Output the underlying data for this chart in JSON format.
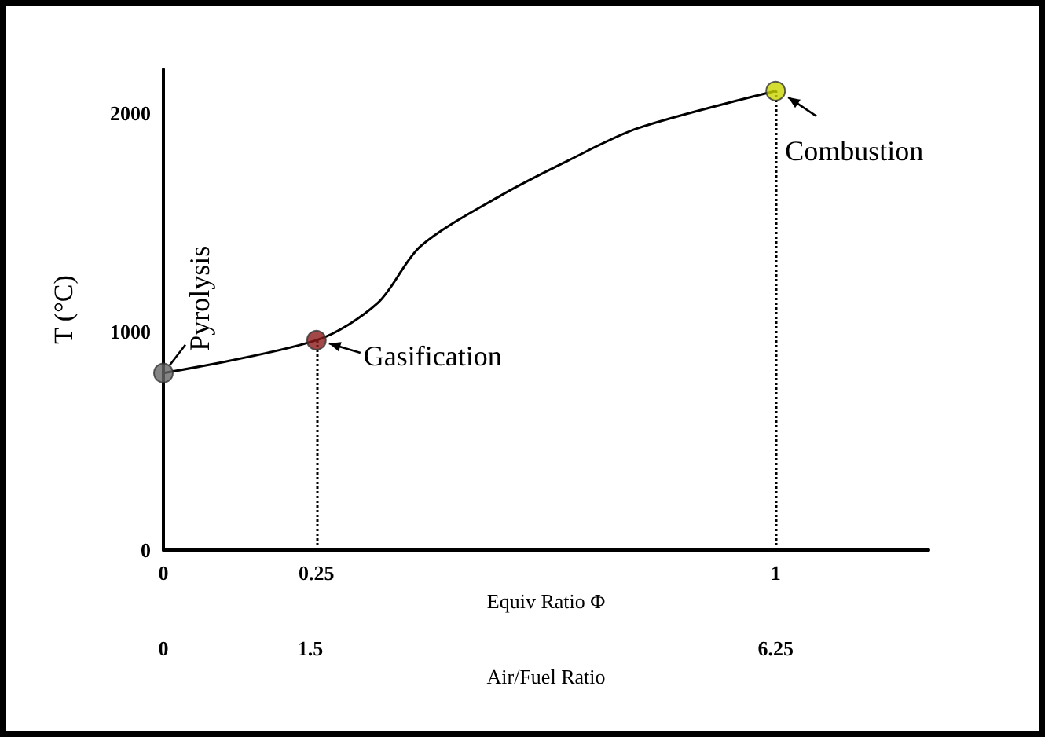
{
  "chart_data": {
    "type": "line",
    "xlabel": "Equiv Ratio Φ",
    "x2label": "Air/Fuel Ratio",
    "ylabel": "T (°C)",
    "xlim": [
      0,
      1.25
    ],
    "xticks": [
      0,
      0.25,
      1
    ],
    "x2lim": [
      0,
      7.8125
    ],
    "x2ticks": [
      0,
      1.5,
      6.25
    ],
    "ylim": [
      0,
      2200
    ],
    "yticks": [
      0,
      1000,
      2000
    ],
    "series": [
      {
        "color": "#000000",
        "x": [
          0,
          0.25,
          0.35,
          0.42,
          0.55,
          0.66,
          0.775,
          1
        ],
        "values": [
          810,
          960,
          1130,
          1390,
          1620,
          1780,
          1930,
          2100
        ]
      },
      {
        "type": "scatter",
        "color": "#666666",
        "colors": [
          "#666666",
          "#8b1a1a",
          "#c8d400"
        ],
        "x": [
          0,
          0.25,
          1
        ],
        "values": [
          810,
          960,
          2100
        ]
      }
    ],
    "ref_lines": [
      {
        "axis": "x",
        "value": 0.25,
        "line_style": "dotted",
        "color": "#000000"
      },
      {
        "axis": "x",
        "value": 1,
        "line_style": "dotted",
        "color": "#000000"
      }
    ],
    "annotations": [
      {
        "text": "Pyrolysis",
        "x": 0,
        "y": 810
      },
      {
        "text": "Gasification",
        "x": 0.25,
        "y": 960
      },
      {
        "text": "Combustion",
        "x": 1,
        "y": 2100
      }
    ],
    "line_style": "solid",
    "grid": false
  }
}
